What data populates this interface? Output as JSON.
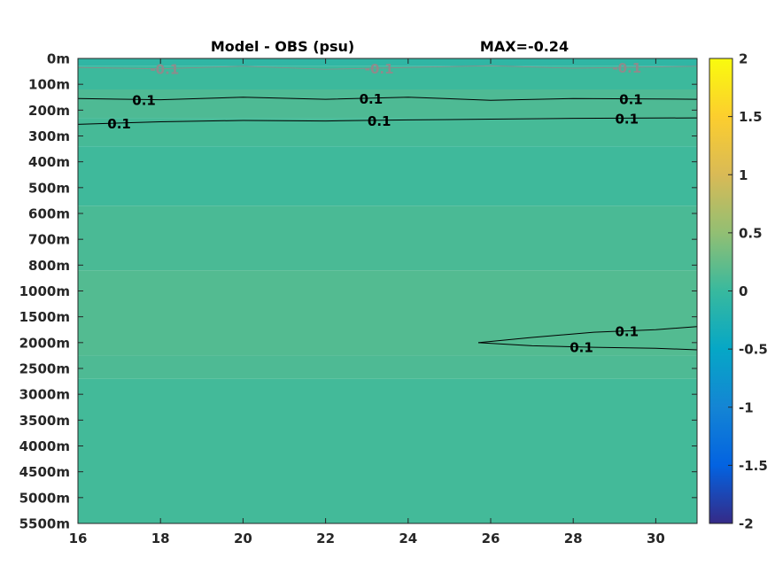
{
  "chart_data": {
    "type": "heatmap",
    "title": "Model - OBS (psu)",
    "annotation": "MAX=-0.24",
    "x": {
      "min": 16,
      "max": 31,
      "ticks": [
        16,
        18,
        20,
        22,
        24,
        26,
        28,
        30
      ],
      "tick_labels": [
        "16",
        "18",
        "20",
        "22",
        "24",
        "26",
        "28",
        "30"
      ]
    },
    "y": {
      "tick_labels": [
        "0m",
        "100m",
        "200m",
        "300m",
        "400m",
        "500m",
        "600m",
        "700m",
        "800m",
        "1000m",
        "1500m",
        "2000m",
        "2500m",
        "3000m",
        "3500m",
        "4000m",
        "4500m",
        "5000m",
        "5500m"
      ],
      "note": "depth levels are evenly spaced on the axis"
    },
    "colorbar": {
      "min": -2,
      "max": 2,
      "ticks": [
        2,
        1.5,
        1,
        0.5,
        0,
        -0.5,
        -1,
        -1.5,
        -2
      ],
      "tick_labels": [
        "2",
        "1.5",
        "1",
        "0.5",
        "0",
        "-0.5",
        "-1",
        "-1.5",
        "-2"
      ],
      "colormap": "parula"
    },
    "field_bands": [
      {
        "from": 0,
        "to": 0.3,
        "value": -0.08
      },
      {
        "from": 0.3,
        "to": 1.2,
        "value": 0.02
      },
      {
        "from": 1.2,
        "to": 2.3,
        "value": 0.12
      },
      {
        "from": 2.3,
        "to": 3.4,
        "value": 0.08
      },
      {
        "from": 3.4,
        "to": 5.7,
        "value": 0.04
      },
      {
        "from": 5.7,
        "to": 8.2,
        "value": 0.1
      },
      {
        "from": 8.2,
        "to": 11.5,
        "value": 0.15
      },
      {
        "from": 11.5,
        "to": 12.4,
        "value": 0.12
      },
      {
        "from": 12.4,
        "to": 18,
        "value": 0.06
      }
    ],
    "contours": [
      {
        "level": -0.1,
        "label": "-0.1",
        "depth_index": [
          0.35,
          0.4,
          0.3,
          0.42,
          0.35,
          0.28,
          0.38,
          0.3
        ],
        "x": [
          16,
          18,
          20,
          22,
          24,
          26,
          28,
          31
        ],
        "labels_at": [
          18.1,
          23.3,
          29.3
        ]
      },
      {
        "level": 0.1,
        "label": "0.1",
        "depth_index": [
          1.55,
          1.6,
          1.5,
          1.58,
          1.5,
          1.62,
          1.55,
          1.58
        ],
        "x": [
          16,
          18,
          20,
          22,
          24,
          26,
          28,
          31
        ],
        "labels_at": [
          17.6,
          23.1,
          29.4
        ]
      },
      {
        "level": 0.1,
        "label": "0.1",
        "depth_index": [
          2.55,
          2.45,
          2.4,
          2.42,
          2.38,
          2.35,
          2.32,
          2.3
        ],
        "x": [
          16,
          18,
          20,
          22,
          24,
          26,
          28,
          31
        ],
        "labels_at": [
          17,
          23.3,
          29.3
        ]
      },
      {
        "level": 0.1,
        "label": "0.1",
        "depth_index": [
          11,
          10.8,
          10.6,
          10.5,
          10.38
        ],
        "x": [
          25.7,
          27,
          28.5,
          30,
          31
        ],
        "labels_at": [
          29.3
        ]
      },
      {
        "level": 0.1,
        "label": "0.1",
        "depth_index": [
          11,
          11.12,
          11.18,
          11.22,
          11.28
        ],
        "x": [
          25.7,
          27,
          28.5,
          30,
          31
        ],
        "labels_at": [
          28.2
        ]
      }
    ]
  }
}
